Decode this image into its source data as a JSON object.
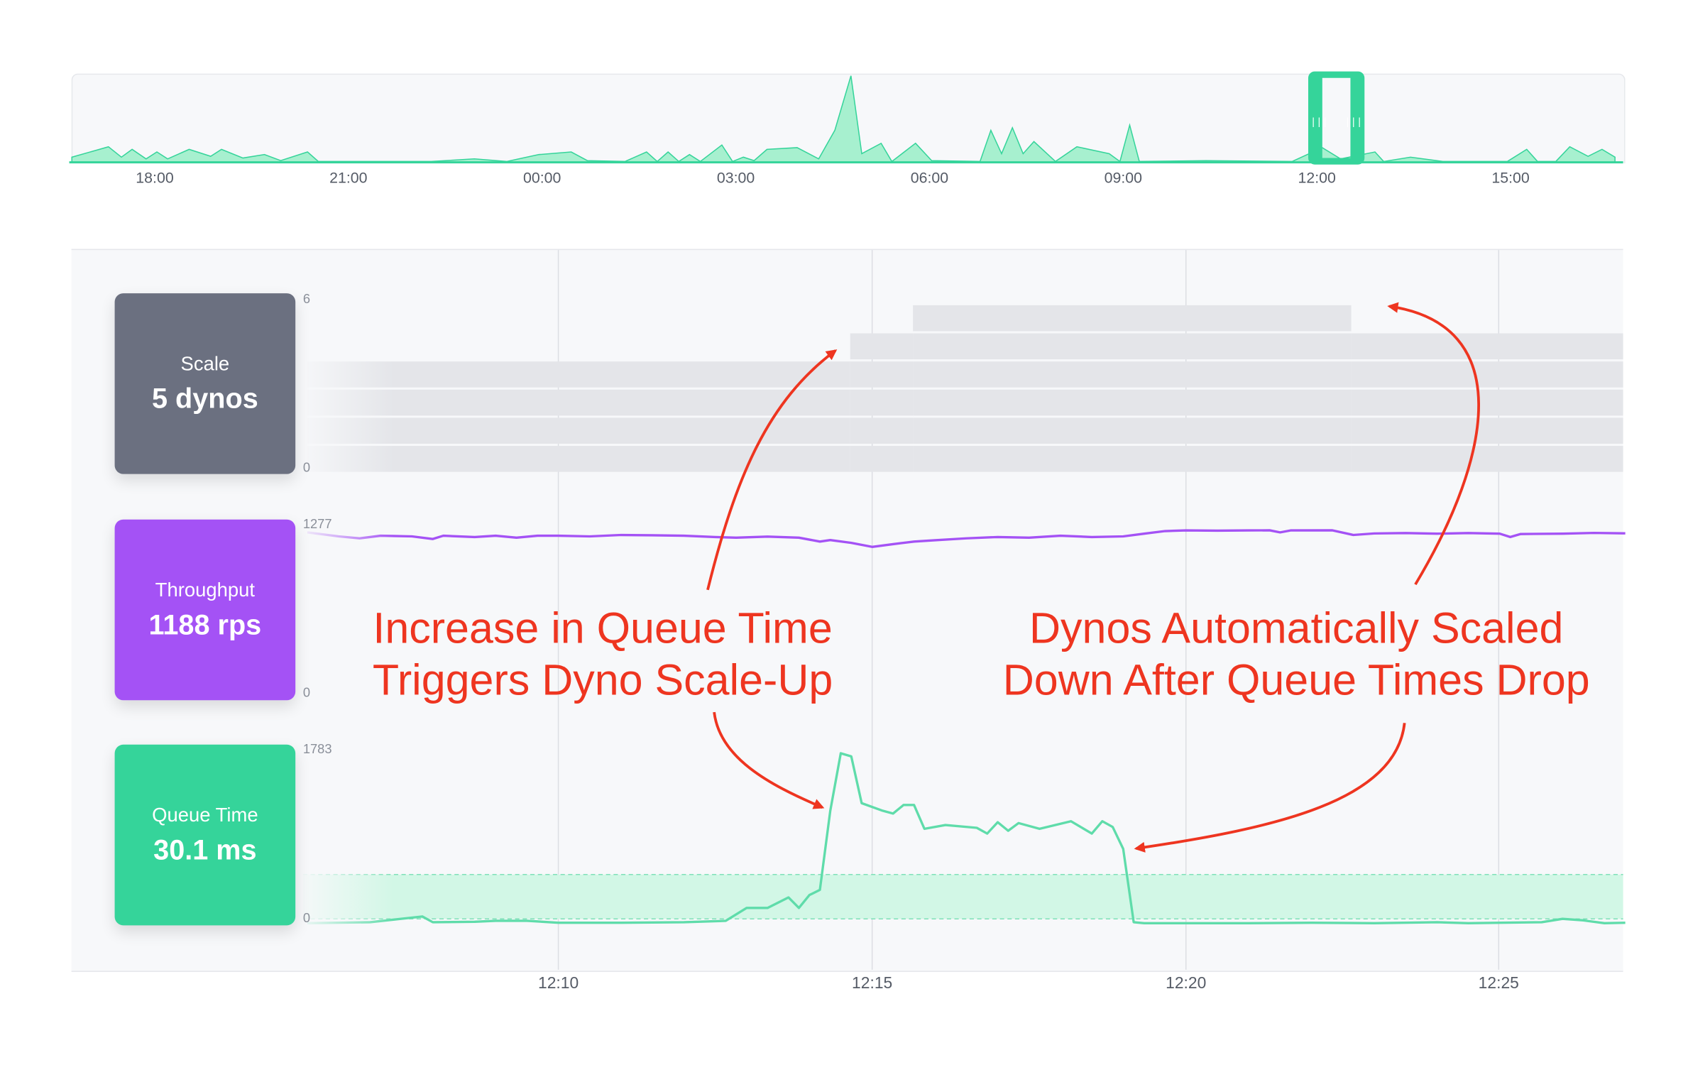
{
  "minimap": {
    "ticks": [
      "18:00",
      "21:00",
      "00:00",
      "03:00",
      "06:00",
      "09:00",
      "12:00",
      "15:00"
    ],
    "color": "#35d49a",
    "fill": "#a7f0cf",
    "series": [
      [
        "16:43",
        6
      ],
      [
        "17:17",
        18
      ],
      [
        "17:29",
        6
      ],
      [
        "17:39",
        15
      ],
      [
        "17:52",
        4
      ],
      [
        "18:02",
        12
      ],
      [
        "18:12",
        4
      ],
      [
        "18:32",
        15
      ],
      [
        "18:52",
        7
      ],
      [
        "19:02",
        15
      ],
      [
        "19:22",
        5
      ],
      [
        "19:42",
        9
      ],
      [
        "19:57",
        2
      ],
      [
        "20:22",
        12
      ],
      [
        "20:32",
        1
      ],
      [
        "22:17",
        1
      ],
      [
        "22:57",
        4
      ],
      [
        "23:27",
        1
      ],
      [
        "23:57",
        9
      ],
      [
        "00:27",
        12
      ],
      [
        "00:42",
        2
      ],
      [
        "01:17",
        1
      ],
      [
        "01:37",
        12
      ],
      [
        "01:47",
        1
      ],
      [
        "01:57",
        12
      ],
      [
        "02:07",
        1
      ],
      [
        "02:17",
        9
      ],
      [
        "02:27",
        1
      ],
      [
        "02:47",
        20
      ],
      [
        "02:57",
        1
      ],
      [
        "03:07",
        6
      ],
      [
        "03:17",
        2
      ],
      [
        "03:29",
        15
      ],
      [
        "03:57",
        17
      ],
      [
        "04:17",
        4
      ],
      [
        "04:32",
        37
      ],
      [
        "04:47",
        100
      ],
      [
        "04:57",
        10
      ],
      [
        "05:15",
        22
      ],
      [
        "05:25",
        1
      ],
      [
        "05:47",
        22
      ],
      [
        "06:02",
        2
      ],
      [
        "06:47",
        1
      ],
      [
        "06:57",
        37
      ],
      [
        "07:07",
        10
      ],
      [
        "07:17",
        40
      ],
      [
        "07:27",
        10
      ],
      [
        "07:37",
        24
      ],
      [
        "07:57",
        1
      ],
      [
        "08:17",
        18
      ],
      [
        "08:47",
        10
      ],
      [
        "08:57",
        1
      ],
      [
        "09:06",
        43
      ],
      [
        "09:15",
        1
      ],
      [
        "10:17",
        2
      ],
      [
        "11:37",
        1
      ],
      [
        "12:05",
        17
      ],
      [
        "12:22",
        4
      ],
      [
        "12:54",
        12
      ],
      [
        "13:02",
        1
      ],
      [
        "13:27",
        6
      ],
      [
        "13:57",
        1
      ],
      [
        "14:57",
        1
      ],
      [
        "15:15",
        15
      ],
      [
        "15:25",
        1
      ],
      [
        "15:42",
        1
      ],
      [
        "15:55",
        18
      ],
      [
        "16:12",
        7
      ],
      [
        "16:25",
        15
      ],
      [
        "16:37",
        6
      ]
    ]
  },
  "cards": {
    "scale": {
      "label": "Scale",
      "value": "5 dynos",
      "color": "#6b7080"
    },
    "throughput": {
      "label": "Throughput",
      "value": "1188 rps",
      "color": "#a452f5"
    },
    "queue": {
      "label": "Queue Time",
      "value": "30.1 ms",
      "color": "#35d49a"
    }
  },
  "x_ticks": [
    "12:10",
    "12:15",
    "12:20",
    "12:25"
  ],
  "chart_data": [
    {
      "type": "area",
      "name": "Scale",
      "ylim": [
        0,
        6
      ],
      "y_tick_labels": [
        "6",
        "0"
      ],
      "color": "#e4e5e9",
      "points": [
        [
          "12:06:00",
          4
        ],
        [
          "12:14:39",
          5
        ],
        [
          "12:15:39",
          6
        ],
        [
          "12:22:38",
          5
        ],
        [
          "12:27:00",
          5
        ]
      ]
    },
    {
      "type": "line",
      "name": "Throughput",
      "ylim": [
        0,
        1277
      ],
      "y_tick_labels": [
        "1277",
        "0"
      ],
      "color": "#a452f5",
      "points": [
        [
          "12:06:00",
          1220
        ],
        [
          "12:06:30",
          1190
        ],
        [
          "12:06:50",
          1175
        ],
        [
          "12:07:10",
          1195
        ],
        [
          "12:07:40",
          1190
        ],
        [
          "12:08:00",
          1170
        ],
        [
          "12:08:10",
          1195
        ],
        [
          "12:08:40",
          1185
        ],
        [
          "12:09:00",
          1195
        ],
        [
          "12:09:20",
          1180
        ],
        [
          "12:09:40",
          1195
        ],
        [
          "12:10:00",
          1195
        ],
        [
          "12:10:30",
          1190
        ],
        [
          "12:11:00",
          1200
        ],
        [
          "12:11:30",
          1198
        ],
        [
          "12:12:00",
          1195
        ],
        [
          "12:12:30",
          1185
        ],
        [
          "12:12:50",
          1180
        ],
        [
          "12:13:20",
          1188
        ],
        [
          "12:13:50",
          1180
        ],
        [
          "12:14:10",
          1150
        ],
        [
          "12:14:20",
          1162
        ],
        [
          "12:14:40",
          1140
        ],
        [
          "12:15:00",
          1110
        ],
        [
          "12:15:20",
          1130
        ],
        [
          "12:15:40",
          1150
        ],
        [
          "12:16:00",
          1160
        ],
        [
          "12:16:30",
          1175
        ],
        [
          "12:17:00",
          1185
        ],
        [
          "12:17:30",
          1180
        ],
        [
          "12:18:00",
          1195
        ],
        [
          "12:18:30",
          1185
        ],
        [
          "12:19:00",
          1190
        ],
        [
          "12:19:20",
          1210
        ],
        [
          "12:19:40",
          1230
        ],
        [
          "12:20:00",
          1235
        ],
        [
          "12:20:30",
          1233
        ],
        [
          "12:21:00",
          1235
        ],
        [
          "12:21:20",
          1236
        ],
        [
          "12:21:30",
          1220
        ],
        [
          "12:21:40",
          1235
        ],
        [
          "12:22:20",
          1236
        ],
        [
          "12:22:40",
          1200
        ],
        [
          "12:23:00",
          1212
        ],
        [
          "12:23:30",
          1215
        ],
        [
          "12:24:00",
          1210
        ],
        [
          "12:24:30",
          1215
        ],
        [
          "12:25:00",
          1210
        ],
        [
          "12:25:10",
          1185
        ],
        [
          "12:25:20",
          1208
        ],
        [
          "12:26:00",
          1210
        ],
        [
          "12:26:30",
          1216
        ],
        [
          "12:27:00",
          1213
        ]
      ]
    },
    {
      "type": "line",
      "name": "Queue Time",
      "ylim": [
        0,
        1783
      ],
      "y_tick_labels": [
        "1783",
        "0"
      ],
      "color": "#5fdcaa",
      "target_band": [
        0,
        465
      ],
      "band_color": "#d2f7e6",
      "points": [
        [
          "12:06:00",
          0
        ],
        [
          "12:07:00",
          10
        ],
        [
          "12:07:50",
          70
        ],
        [
          "12:08:00",
          10
        ],
        [
          "12:08:40",
          15
        ],
        [
          "12:09:00",
          25
        ],
        [
          "12:09:30",
          25
        ],
        [
          "12:10:00",
          5
        ],
        [
          "12:11:00",
          5
        ],
        [
          "12:12:00",
          10
        ],
        [
          "12:12:40",
          25
        ],
        [
          "12:13:00",
          160
        ],
        [
          "12:13:20",
          160
        ],
        [
          "12:13:40",
          270
        ],
        [
          "12:13:50",
          160
        ],
        [
          "12:14:00",
          295
        ],
        [
          "12:14:10",
          350
        ],
        [
          "12:14:20",
          1180
        ],
        [
          "12:14:30",
          1783
        ],
        [
          "12:14:40",
          1750
        ],
        [
          "12:14:50",
          1260
        ],
        [
          "12:15:10",
          1180
        ],
        [
          "12:15:20",
          1150
        ],
        [
          "12:15:30",
          1240
        ],
        [
          "12:15:40",
          1240
        ],
        [
          "12:15:50",
          990
        ],
        [
          "12:16:10",
          1030
        ],
        [
          "12:16:40",
          1000
        ],
        [
          "12:16:50",
          940
        ],
        [
          "12:17:00",
          1060
        ],
        [
          "12:17:10",
          970
        ],
        [
          "12:17:20",
          1050
        ],
        [
          "12:17:40",
          990
        ],
        [
          "12:18:10",
          1070
        ],
        [
          "12:18:30",
          940
        ],
        [
          "12:18:40",
          1070
        ],
        [
          "12:18:50",
          1010
        ],
        [
          "12:19:00",
          780
        ],
        [
          "12:19:10",
          10
        ],
        [
          "12:19:20",
          0
        ],
        [
          "12:21:00",
          0
        ],
        [
          "12:22:00",
          5
        ],
        [
          "12:23:00",
          0
        ],
        [
          "12:24:00",
          10
        ],
        [
          "12:24:30",
          0
        ],
        [
          "12:25:00",
          5
        ],
        [
          "12:25:40",
          10
        ],
        [
          "12:26:00",
          45
        ],
        [
          "12:26:20",
          30
        ],
        [
          "12:26:40",
          0
        ],
        [
          "12:27:00",
          5
        ]
      ]
    }
  ],
  "annotations": {
    "left": [
      "Increase in Queue Time",
      "Triggers Dyno Scale-Up"
    ],
    "right": [
      "Dynos Automatically Scaled",
      "Down After Queue Times Drop"
    ],
    "color": "#ee3520"
  }
}
